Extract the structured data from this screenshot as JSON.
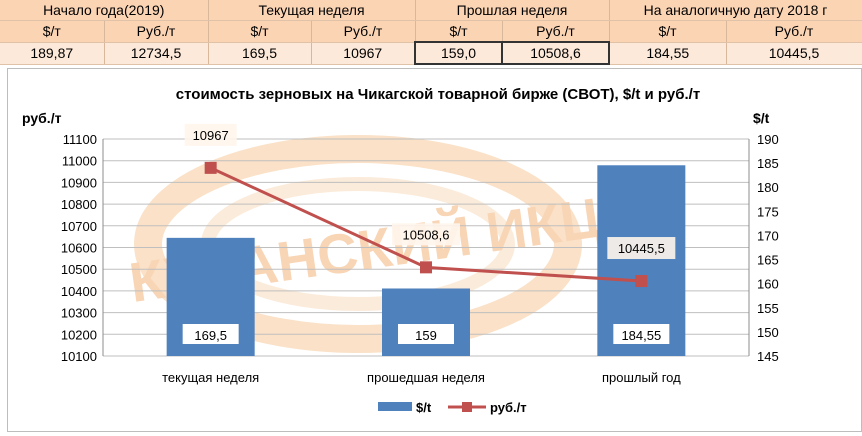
{
  "table": {
    "groups": [
      "Начало года(2019)",
      "Текущая неделя",
      "Прошлая неделя",
      "На аналогичную дату 2018 г"
    ],
    "units": [
      "$/т",
      "Руб./т",
      "$/т",
      "Руб./т",
      "$/т",
      "Руб./т",
      "$/т",
      "Руб./т"
    ],
    "values": [
      "189,87",
      "12734,5",
      "169,5",
      "10967",
      "159,0",
      "10508,6",
      "184,55",
      "10445,5"
    ]
  },
  "chart_data": {
    "type": "bar",
    "title": "стоимость зерновых на Чикагской товарной бирже (СВОТ), $/t и руб./т",
    "ylabel_left": "руб./т",
    "ylabel_right": "$/t",
    "categories": [
      "текущая неделя",
      "прошедшая неделя",
      "прошлый год"
    ],
    "series": [
      {
        "name": "$/t",
        "type": "bar",
        "axis": "right",
        "values": [
          169.5,
          159,
          184.55
        ],
        "labels": [
          "169,5",
          "159",
          "184,55"
        ],
        "color": "#4f81bd"
      },
      {
        "name": "руб./т",
        "type": "line",
        "axis": "left",
        "values": [
          10967,
          10508.6,
          10445.5
        ],
        "labels": [
          "10967",
          "10508,6",
          "10445,5"
        ],
        "color": "#c0504d"
      }
    ],
    "ylim_left": [
      10100,
      11100
    ],
    "yticks_left": [
      "10100",
      "10200",
      "10300",
      "10400",
      "10500",
      "10600",
      "10700",
      "10800",
      "10900",
      "11000",
      "11100"
    ],
    "ylim_right": [
      145,
      190
    ],
    "yticks_right": [
      "145",
      "150",
      "155",
      "160",
      "165",
      "170",
      "175",
      "180",
      "185",
      "190"
    ],
    "grid": true,
    "legend_position": "bottom",
    "watermark_text": "КУБАНСКИЙ ИКЦ"
  }
}
